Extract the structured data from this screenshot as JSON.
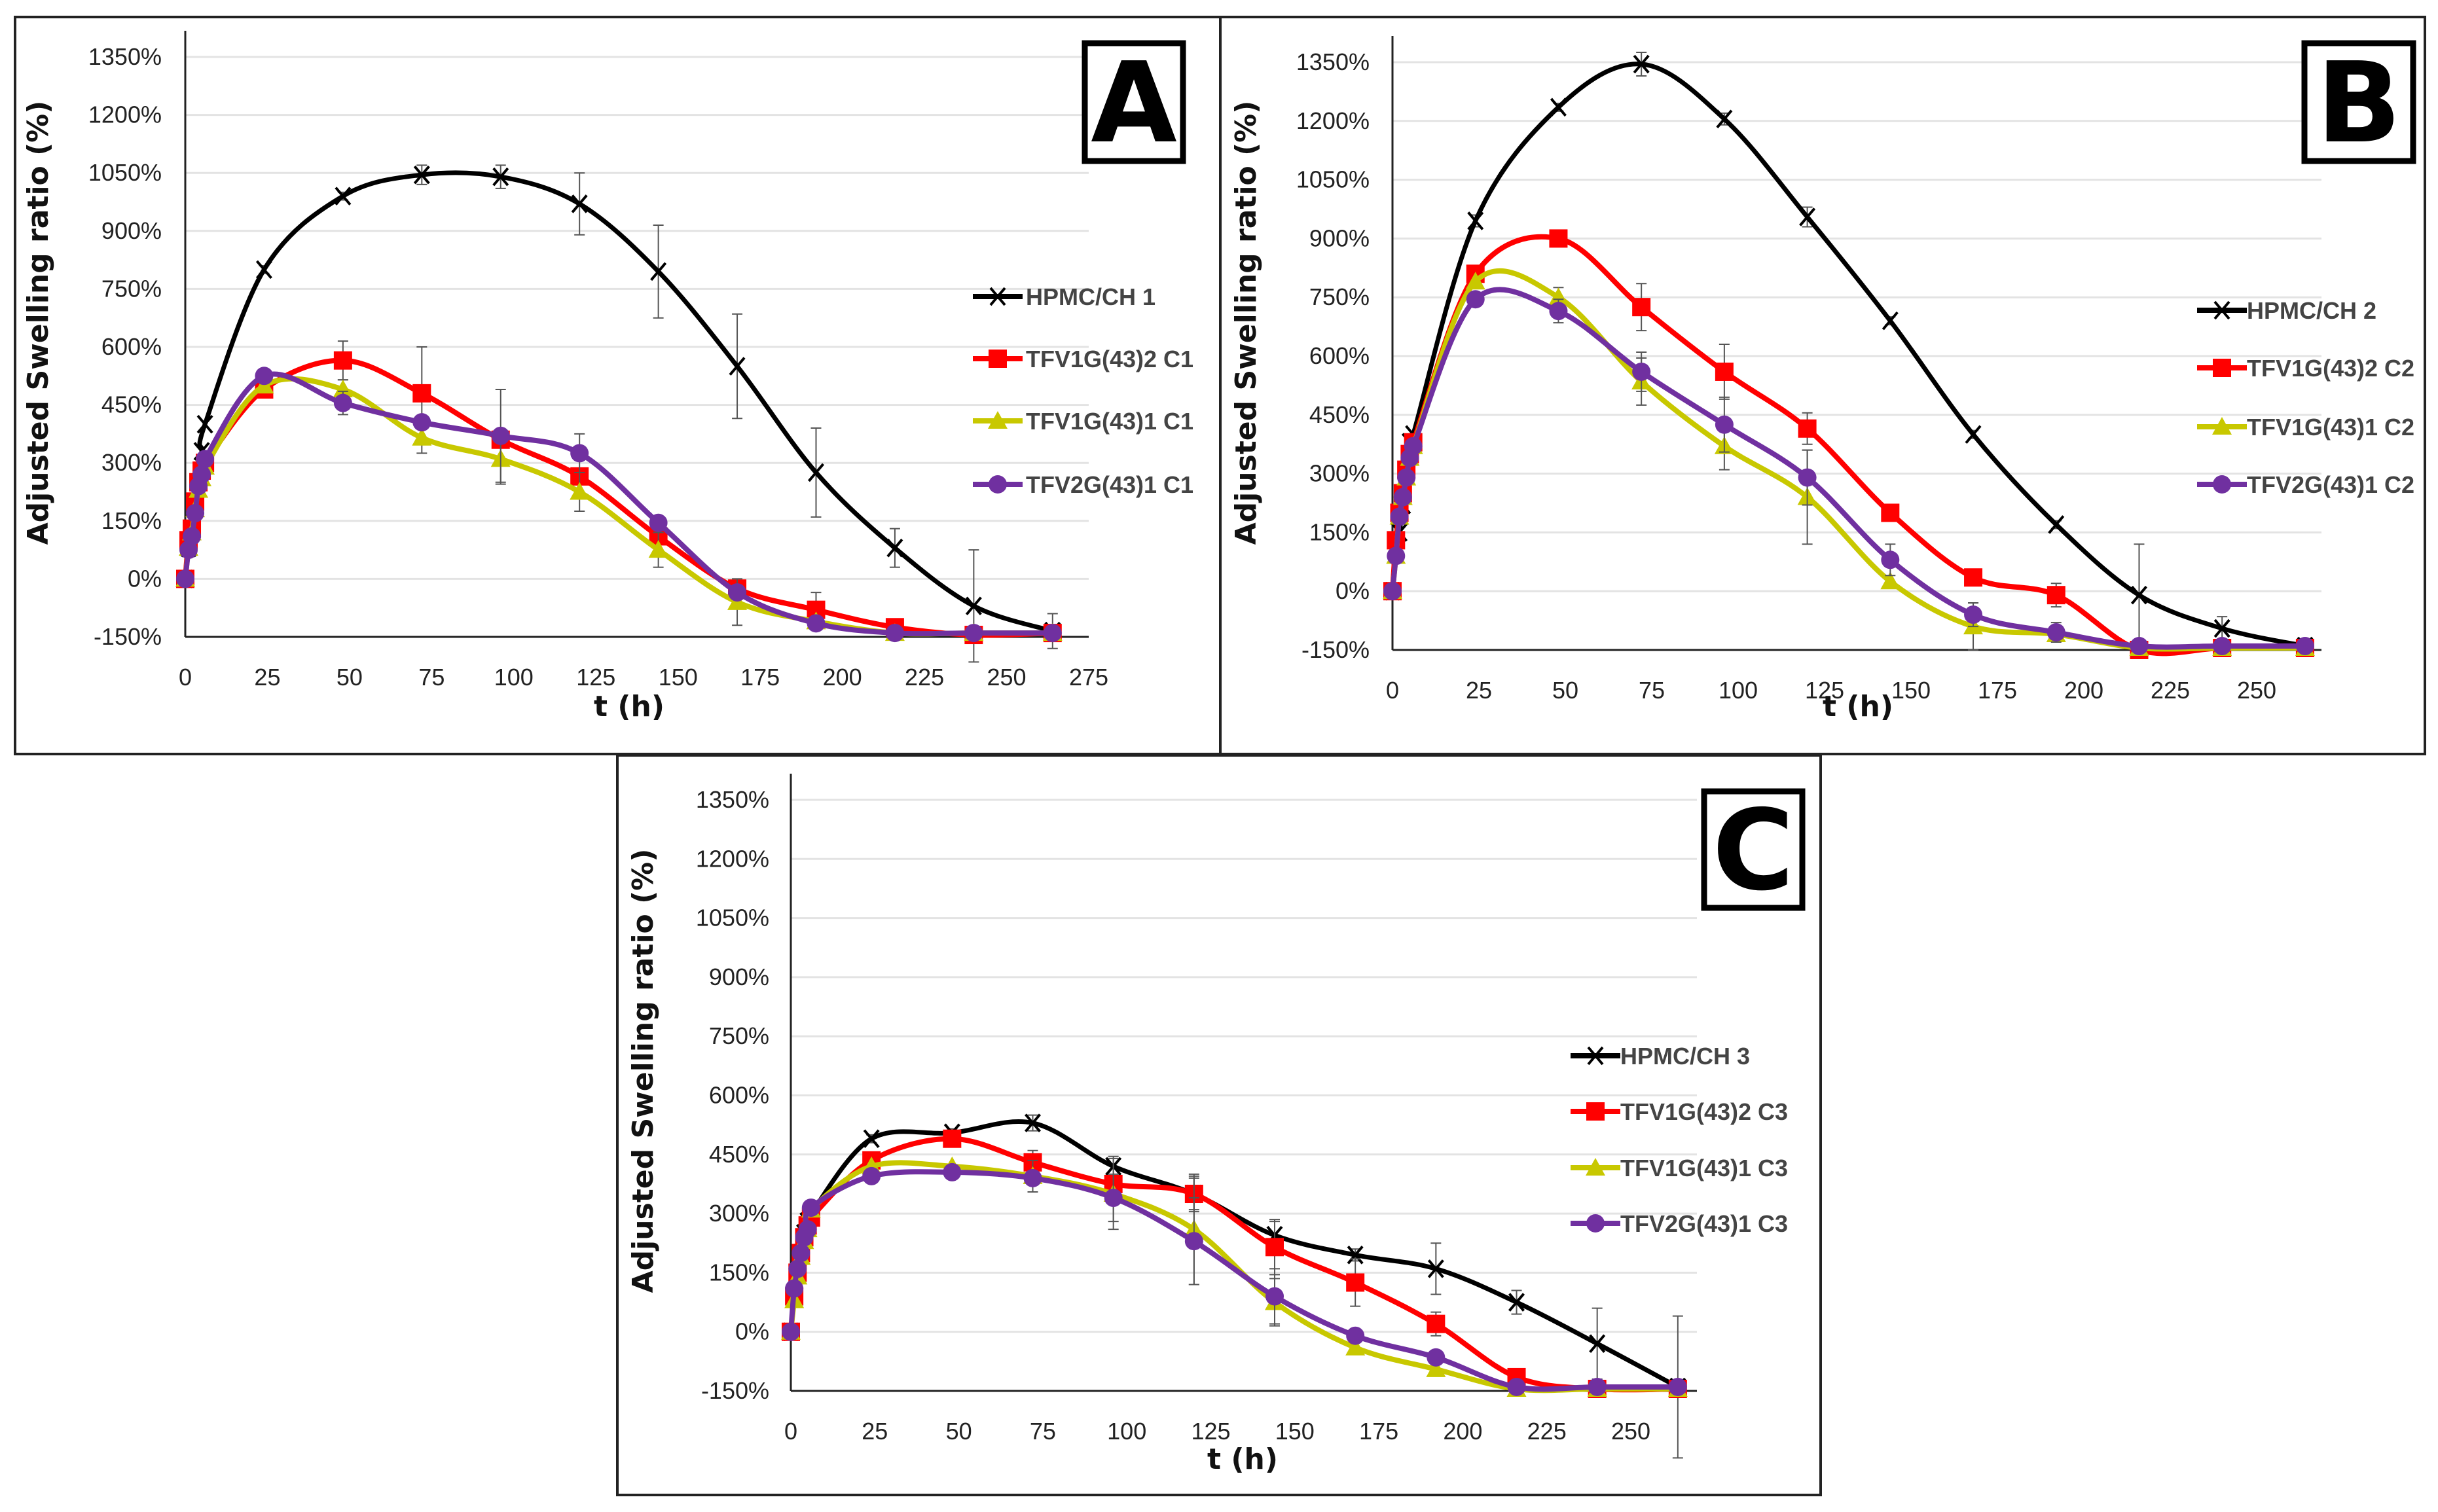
{
  "chart_data": [
    {
      "type": "line",
      "panel": "A",
      "xlabel": "t (h)",
      "ylabel": "Adjusted Swelling ratio (%)",
      "xlim": [
        0,
        275
      ],
      "ylim": [
        -150,
        1350
      ],
      "xticks": [
        "0",
        "25",
        "50",
        "75",
        "100",
        "125",
        "150",
        "175",
        "200",
        "225",
        "250",
        "275"
      ],
      "yticks": [
        "-150%",
        "0%",
        "150%",
        "300%",
        "450%",
        "600%",
        "750%",
        "900%",
        "1050%",
        "1200%",
        "1350%"
      ],
      "x": [
        0,
        1,
        2,
        3,
        4,
        5,
        6,
        24,
        48,
        72,
        96,
        120,
        144,
        168,
        192,
        216,
        240,
        264
      ],
      "legend_position": "right",
      "series": [
        {
          "name": "HPMC/CH 1",
          "color": "#000000",
          "marker": "x",
          "values": [
            0,
            80,
            130,
            180,
            250,
            330,
            400,
            800,
            990,
            1045,
            1040,
            970,
            795,
            550,
            275,
            80,
            -70,
            -135
          ],
          "err": [
            0,
            0,
            0,
            0,
            0,
            0,
            0,
            10,
            10,
            25,
            30,
            80,
            120,
            135,
            115,
            50,
            145,
            45
          ]
        },
        {
          "name": "TFV1G(43)2 C1",
          "color": "#ff0000",
          "marker": "square",
          "values": [
            0,
            100,
            130,
            200,
            250,
            280,
            300,
            490,
            565,
            480,
            360,
            265,
            110,
            -25,
            -80,
            -125,
            -145,
            -140
          ],
          "err": [
            0,
            0,
            0,
            0,
            0,
            0,
            0,
            0,
            50,
            120,
            0,
            0,
            0,
            0,
            45,
            0,
            0,
            0
          ]
        },
        {
          "name": "TFV1G(43)1 C1",
          "color": "#c8c800",
          "marker": "triangle",
          "values": [
            0,
            80,
            120,
            180,
            230,
            260,
            290,
            500,
            490,
            365,
            310,
            225,
            75,
            -60,
            -110,
            -140,
            -140,
            -140
          ],
          "err": [
            0,
            0,
            0,
            0,
            0,
            0,
            0,
            0,
            25,
            40,
            65,
            50,
            45,
            60,
            0,
            0,
            0,
            0
          ]
        },
        {
          "name": "TFV2G(43)1 C1",
          "color": "#7030a0",
          "marker": "circle",
          "values": [
            0,
            75,
            110,
            170,
            240,
            270,
            310,
            525,
            455,
            405,
            370,
            325,
            145,
            -35,
            -115,
            -140,
            -140,
            -140
          ],
          "err": [
            0,
            0,
            0,
            0,
            0,
            0,
            0,
            0,
            30,
            0,
            120,
            50,
            0,
            0,
            0,
            0,
            0,
            0
          ]
        }
      ]
    },
    {
      "type": "line",
      "panel": "B",
      "xlabel": "t (h)",
      "ylabel": "Adjusted Swelling ratio (%)",
      "xlim": [
        0,
        270
      ],
      "ylim": [
        -150,
        1350
      ],
      "xticks": [
        "0",
        "25",
        "50",
        "75",
        "100",
        "125",
        "150",
        "175",
        "200",
        "225",
        "250"
      ],
      "yticks": [
        "-150%",
        "0%",
        "150%",
        "300%",
        "450%",
        "600%",
        "750%",
        "900%",
        "1050%",
        "1200%",
        "1350%"
      ],
      "x": [
        0,
        1,
        2,
        3,
        4,
        5,
        6,
        24,
        48,
        72,
        96,
        120,
        144,
        168,
        192,
        216,
        240,
        264
      ],
      "legend_position": "right",
      "series": [
        {
          "name": "HPMC/CH 2",
          "color": "#000000",
          "marker": "x",
          "values": [
            0,
            100,
            150,
            220,
            300,
            380,
            400,
            945,
            1235,
            1345,
            1205,
            955,
            690,
            400,
            170,
            -10,
            -95,
            -140
          ],
          "err": [
            0,
            0,
            0,
            0,
            0,
            0,
            0,
            15,
            10,
            30,
            15,
            25,
            10,
            10,
            10,
            130,
            30,
            10
          ]
        },
        {
          "name": "TFV1G(43)2 C2",
          "color": "#ff0000",
          "marker": "square",
          "values": [
            0,
            130,
            200,
            250,
            310,
            350,
            380,
            810,
            900,
            725,
            560,
            415,
            200,
            35,
            -10,
            -150,
            -145,
            -145
          ],
          "err": [
            0,
            0,
            0,
            0,
            0,
            0,
            0,
            0,
            0,
            60,
            70,
            40,
            20,
            0,
            30,
            0,
            0,
            0
          ]
        },
        {
          "name": "TFV1G(43)1 C2",
          "color": "#c8c800",
          "marker": "triangle",
          "values": [
            0,
            90,
            190,
            240,
            290,
            340,
            370,
            790,
            750,
            535,
            370,
            240,
            25,
            -90,
            -110,
            -145,
            -145,
            -145
          ],
          "err": [
            0,
            0,
            0,
            0,
            0,
            0,
            0,
            0,
            25,
            60,
            60,
            120,
            0,
            60,
            0,
            0,
            0,
            0
          ]
        },
        {
          "name": "TFV2G(43)1 C2",
          "color": "#7030a0",
          "marker": "circle",
          "values": [
            0,
            90,
            190,
            240,
            290,
            340,
            370,
            745,
            715,
            560,
            425,
            290,
            80,
            -60,
            -105,
            -140,
            -140,
            -140
          ],
          "err": [
            0,
            0,
            0,
            0,
            0,
            0,
            0,
            0,
            30,
            50,
            70,
            70,
            40,
            30,
            25,
            0,
            0,
            0
          ]
        }
      ]
    },
    {
      "type": "line",
      "panel": "C",
      "xlabel": "t (h)",
      "ylabel": "Adjusted Swelling ratio (%)",
      "xlim": [
        0,
        270
      ],
      "ylim": [
        -150,
        1350
      ],
      "xticks": [
        "0",
        "25",
        "50",
        "75",
        "100",
        "125",
        "150",
        "175",
        "200",
        "225",
        "250"
      ],
      "yticks": [
        "-150%",
        "0%",
        "150%",
        "300%",
        "450%",
        "600%",
        "750%",
        "900%",
        "1050%",
        "1200%",
        "1350%"
      ],
      "x": [
        0,
        1,
        2,
        3,
        4,
        5,
        6,
        24,
        48,
        72,
        96,
        120,
        144,
        168,
        192,
        216,
        240,
        264
      ],
      "legend_position": "right",
      "series": [
        {
          "name": "HPMC/CH 3",
          "color": "#000000",
          "marker": "x",
          "values": [
            0,
            100,
            150,
            200,
            250,
            280,
            300,
            490,
            505,
            530,
            420,
            350,
            245,
            195,
            160,
            75,
            -30,
            -140
          ],
          "err": [
            0,
            0,
            0,
            0,
            0,
            0,
            0,
            10,
            10,
            20,
            25,
            40,
            35,
            15,
            65,
            30,
            90,
            180
          ]
        },
        {
          "name": "TFV1G(43)2 C3",
          "color": "#ff0000",
          "marker": "square",
          "values": [
            0,
            90,
            150,
            200,
            240,
            270,
            290,
            435,
            490,
            430,
            375,
            350,
            215,
            125,
            20,
            -115,
            -145,
            -145
          ],
          "err": [
            0,
            0,
            0,
            0,
            0,
            0,
            0,
            0,
            0,
            30,
            0,
            45,
            70,
            60,
            30,
            0,
            0,
            0
          ]
        },
        {
          "name": "TFV1G(43)1 C3",
          "color": "#c8c800",
          "marker": "triangle",
          "values": [
            0,
            80,
            140,
            190,
            230,
            260,
            310,
            420,
            420,
            395,
            350,
            260,
            75,
            -40,
            -95,
            -145,
            -145,
            -145
          ],
          "err": [
            0,
            0,
            0,
            0,
            0,
            0,
            0,
            0,
            0,
            40,
            90,
            140,
            60,
            0,
            0,
            0,
            0,
            0
          ]
        },
        {
          "name": "TFV2G(43)1 C3",
          "color": "#7030a0",
          "marker": "circle",
          "values": [
            0,
            110,
            160,
            200,
            240,
            260,
            315,
            395,
            405,
            390,
            340,
            230,
            90,
            -10,
            -65,
            -140,
            -140,
            -140
          ],
          "err": [
            0,
            0,
            0,
            0,
            0,
            0,
            0,
            0,
            0,
            0,
            60,
            110,
            70,
            0,
            0,
            0,
            0,
            0
          ]
        }
      ]
    }
  ]
}
